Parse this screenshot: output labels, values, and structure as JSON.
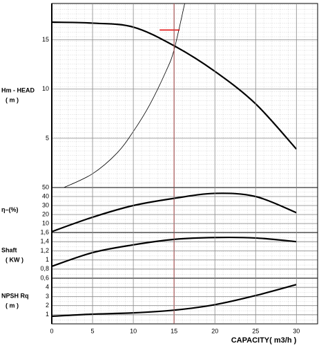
{
  "chart_data": [
    {
      "type": "line",
      "ylabel": [
        "Hm - HEAD",
        "( m )"
      ],
      "xlim": [
        0,
        32.6
      ],
      "ylim": [
        0,
        18.7
      ],
      "yticks": [
        5,
        10,
        15
      ],
      "series": [
        {
          "color": "#000000",
          "line_width": 2.2,
          "x": [
            0,
            5,
            10,
            15,
            20,
            25,
            30
          ],
          "values": [
            16.8,
            16.7,
            16.3,
            14.4,
            11.8,
            8.5,
            3.9
          ]
        },
        {
          "color": "#000000",
          "line_width": 0.8,
          "x": [
            1.5,
            5,
            8,
            10,
            12,
            14,
            15,
            16.3
          ],
          "values": [
            0,
            1.4,
            3.5,
            5.7,
            8.4,
            11.8,
            14,
            18.7
          ]
        }
      ],
      "marker": {
        "x": 15,
        "y": 16,
        "color": "#e00000"
      }
    },
    {
      "type": "line",
      "ylabel": [
        "η–(%)"
      ],
      "xlim": [
        0,
        32.6
      ],
      "ylim": [
        0,
        50
      ],
      "yticks": [
        10,
        20,
        30,
        40,
        50
      ],
      "series": [
        {
          "color": "#000000",
          "line_width": 2.2,
          "x": [
            0,
            5,
            10,
            15,
            20,
            25,
            30
          ],
          "values": [
            1,
            17,
            30,
            38,
            43.5,
            40,
            22
          ]
        }
      ]
    },
    {
      "type": "line",
      "ylabel": [
        "Shaft",
        "( KW )"
      ],
      "xlim": [
        0,
        32.6
      ],
      "ylim": [
        0.6,
        1.6
      ],
      "yticks": [
        {
          "value": 0.6,
          "label": "0,6"
        },
        {
          "value": 0.8,
          "label": "0,8"
        },
        1,
        {
          "value": 1.2,
          "label": "1,2"
        },
        {
          "value": 1.4,
          "label": "1,4"
        },
        {
          "value": 1.6,
          "label": "1,6"
        }
      ],
      "series": [
        {
          "color": "#000000",
          "line_width": 2.2,
          "x": [
            0,
            5,
            10,
            15,
            20,
            25,
            30
          ],
          "values": [
            0.86,
            1.16,
            1.33,
            1.45,
            1.49,
            1.48,
            1.4
          ]
        }
      ]
    },
    {
      "type": "line",
      "ylabel": [
        "NPSH Rq",
        "( m )"
      ],
      "xlabel": "CAPACITY( m3/h )",
      "xlim": [
        0,
        32.6
      ],
      "ylim": [
        0,
        5
      ],
      "yticks": [
        1,
        2,
        3,
        4
      ],
      "xticks": [
        0,
        5,
        10,
        15,
        20,
        25,
        30
      ],
      "series": [
        {
          "color": "#000000",
          "line_width": 2.2,
          "x": [
            0,
            5,
            10,
            15,
            20,
            25,
            30
          ],
          "values": [
            0.83,
            1.06,
            1.2,
            1.5,
            2.1,
            3.1,
            4.3
          ]
        }
      ]
    }
  ]
}
